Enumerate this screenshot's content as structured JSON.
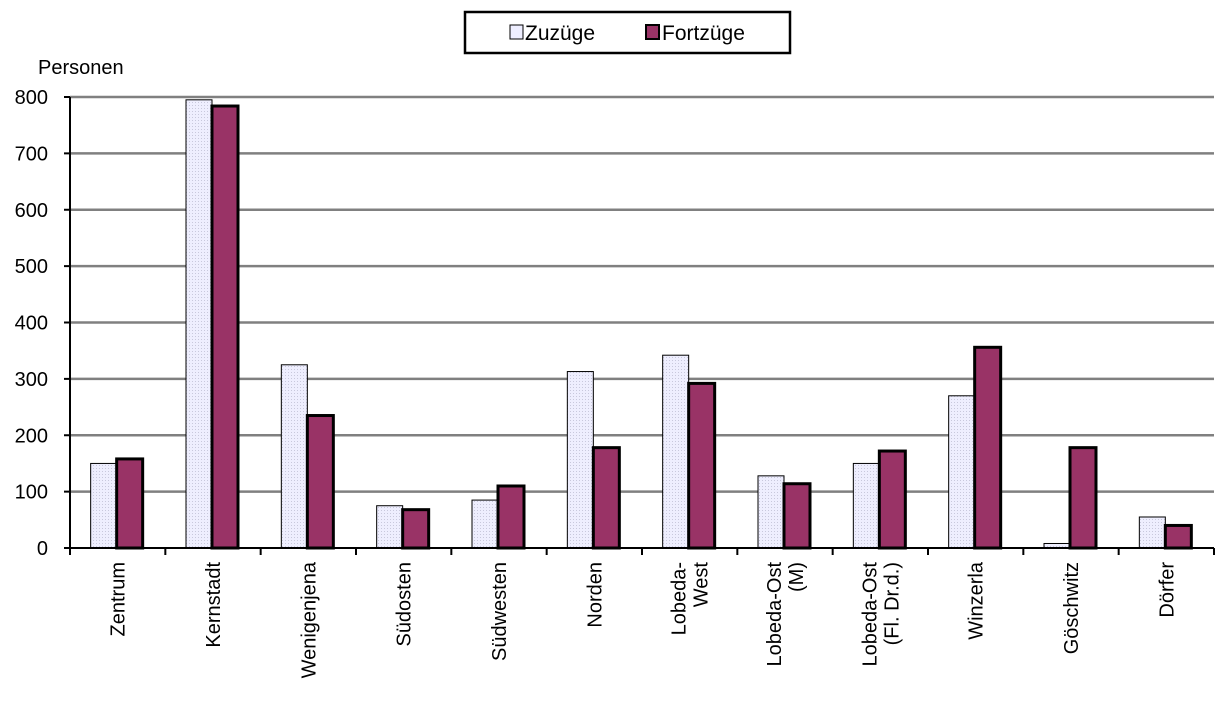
{
  "chart_data": {
    "type": "bar",
    "ylabel": "Personen",
    "ylim": [
      0,
      800
    ],
    "yticks": [
      "0",
      "100",
      "200",
      "300",
      "400",
      "500",
      "600",
      "700",
      "800"
    ],
    "grid": true,
    "legend_position": "top-center",
    "categories": [
      [
        "Zentrum"
      ],
      [
        "Kernstadt"
      ],
      [
        "Wenigenjena"
      ],
      [
        "Südosten"
      ],
      [
        "Südwesten"
      ],
      [
        "Norden"
      ],
      [
        "Lobeda-",
        "West"
      ],
      [
        "Lobeda-Ost",
        "(M)"
      ],
      [
        "Lobeda-Ost",
        "(Fl. Dr.d.)"
      ],
      [
        "Winzerla"
      ],
      [
        "Göschwitz"
      ],
      [
        "Dörfer"
      ]
    ],
    "series": [
      {
        "name": "Zuzüge",
        "color": "#eeeeff",
        "values": [
          150,
          795,
          325,
          75,
          85,
          313,
          342,
          128,
          150,
          270,
          8,
          55
        ]
      },
      {
        "name": "Fortzüge",
        "color": "#993366",
        "values": [
          158,
          784,
          235,
          68,
          110,
          178,
          292,
          114,
          172,
          356,
          178,
          40
        ]
      }
    ]
  }
}
